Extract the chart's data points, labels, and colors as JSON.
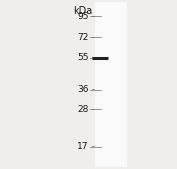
{
  "kda_label": "kDa",
  "mw_markers": [
    95,
    72,
    55,
    36,
    28,
    17
  ],
  "band_mw": 55,
  "band_color": "#222222",
  "background_color": "#f0eeec",
  "lane_color": "#e8e6e2",
  "lane_bg_color": "#fafafa",
  "tick_label_fontsize": 6.5,
  "kda_fontsize": 7.0,
  "fig_width": 1.77,
  "fig_height": 1.69,
  "ylim_low": 13,
  "ylim_high": 115
}
